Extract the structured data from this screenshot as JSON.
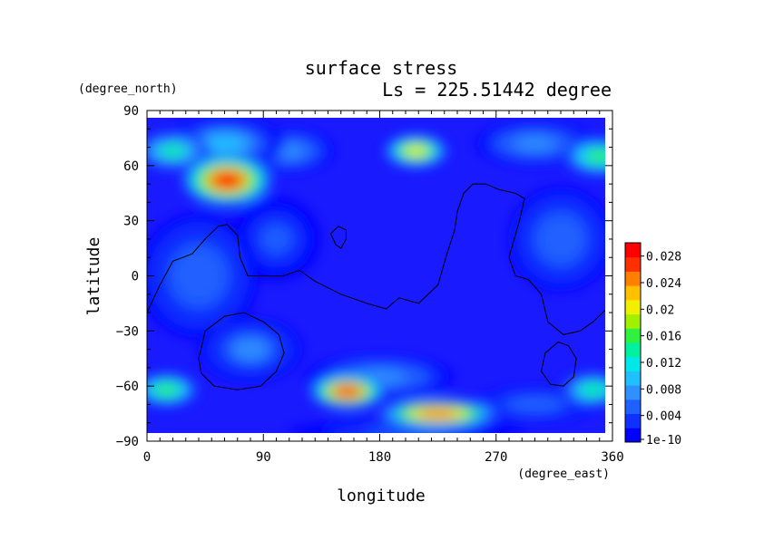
{
  "chart_data": {
    "type": "heatmap",
    "title": "surface stress",
    "subtitle": "Ls = 225.51442 degree",
    "xlabel": "longitude",
    "ylabel": "latitude",
    "x_units": "(degree_east)",
    "y_units": "(degree_north)",
    "xlim": [
      0,
      360
    ],
    "ylim": [
      -90,
      90
    ],
    "x_ticks": [
      "0",
      "90",
      "180",
      "270",
      "360"
    ],
    "x_tick_values": [
      0,
      90,
      180,
      270,
      360
    ],
    "y_ticks": [
      "90",
      "60",
      "30",
      "0",
      "−30",
      "−60",
      "−90"
    ],
    "y_tick_values": [
      90,
      60,
      30,
      0,
      -30,
      -60,
      -90
    ],
    "colorbar": {
      "range": [
        0,
        0.03
      ],
      "ticks": [
        "1e-10",
        "0.004",
        "0.008",
        "0.012",
        "0.016",
        "0.02",
        "0.024",
        "0.028"
      ],
      "tick_values": [
        0,
        0.004,
        0.008,
        0.012,
        0.016,
        0.02,
        0.024,
        0.028
      ],
      "colors": [
        "#0000ff",
        "#1030ff",
        "#2060ff",
        "#3090ff",
        "#20c0ff",
        "#00e8e8",
        "#00f0a0",
        "#30f040",
        "#a0f000",
        "#f0f000",
        "#ffc000",
        "#ff8000",
        "#ff3000",
        "#ff0000"
      ]
    },
    "field_features": [
      {
        "lon": 62,
        "lat": 52,
        "value": 0.028,
        "rx": 30,
        "ry": 12
      },
      {
        "lon": 208,
        "lat": 68,
        "value": 0.021,
        "rx": 22,
        "ry": 8
      },
      {
        "lon": 155,
        "lat": -63,
        "value": 0.027,
        "rx": 25,
        "ry": 8
      },
      {
        "lon": 225,
        "lat": -75,
        "value": 0.025,
        "rx": 40,
        "ry": 7
      },
      {
        "lon": 15,
        "lat": -62,
        "value": 0.016,
        "rx": 22,
        "ry": 8
      },
      {
        "lon": 345,
        "lat": -62,
        "value": 0.014,
        "rx": 22,
        "ry": 8
      },
      {
        "lon": 350,
        "lat": 65,
        "value": 0.016,
        "rx": 25,
        "ry": 9
      },
      {
        "lon": 20,
        "lat": 68,
        "value": 0.013,
        "rx": 25,
        "ry": 9
      },
      {
        "lon": 60,
        "lat": 72,
        "value": 0.009,
        "rx": 40,
        "ry": 12
      },
      {
        "lon": 110,
        "lat": 68,
        "value": 0.008,
        "rx": 30,
        "ry": 10
      },
      {
        "lon": 300,
        "lat": 72,
        "value": 0.008,
        "rx": 40,
        "ry": 10
      },
      {
        "lon": 80,
        "lat": -40,
        "value": 0.007,
        "rx": 35,
        "ry": 15
      },
      {
        "lon": 180,
        "lat": -55,
        "value": 0.008,
        "rx": 50,
        "ry": 10
      },
      {
        "lon": 40,
        "lat": 0,
        "value": 0.006,
        "rx": 40,
        "ry": 30
      },
      {
        "lon": 320,
        "lat": 20,
        "value": 0.006,
        "rx": 35,
        "ry": 25
      },
      {
        "lon": 100,
        "lat": 20,
        "value": 0.005,
        "rx": 30,
        "ry": 20
      },
      {
        "lon": 200,
        "lat": -85,
        "value": 0.005,
        "rx": 80,
        "ry": 6
      },
      {
        "lon": 300,
        "lat": -70,
        "value": 0.006,
        "rx": 40,
        "ry": 8
      }
    ],
    "contours": [
      [
        [
          0,
          -20
        ],
        [
          10,
          -5
        ],
        [
          20,
          8
        ],
        [
          35,
          12
        ],
        [
          45,
          20
        ],
        [
          55,
          27
        ],
        [
          62,
          28
        ],
        [
          70,
          22
        ],
        [
          72,
          10
        ],
        [
          78,
          0
        ],
        [
          90,
          0
        ],
        [
          105,
          0
        ],
        [
          118,
          3
        ],
        [
          130,
          -3
        ],
        [
          150,
          -10
        ],
        [
          170,
          -15
        ],
        [
          185,
          -18
        ],
        [
          195,
          -12
        ],
        [
          210,
          -15
        ],
        [
          225,
          -5
        ],
        [
          232,
          12
        ],
        [
          238,
          25
        ],
        [
          240,
          35
        ],
        [
          245,
          45
        ],
        [
          252,
          50
        ],
        [
          262,
          50
        ],
        [
          272,
          47
        ],
        [
          285,
          45
        ],
        [
          292,
          42
        ],
        [
          288,
          30
        ],
        [
          280,
          10
        ],
        [
          285,
          0
        ],
        [
          295,
          -2
        ],
        [
          305,
          -10
        ],
        [
          310,
          -25
        ],
        [
          322,
          -32
        ],
        [
          335,
          -30
        ],
        [
          345,
          -25
        ],
        [
          360,
          -15
        ]
      ],
      [
        [
          40,
          -45
        ],
        [
          45,
          -30
        ],
        [
          60,
          -22
        ],
        [
          75,
          -20
        ],
        [
          90,
          -25
        ],
        [
          102,
          -32
        ],
        [
          106,
          -42
        ],
        [
          100,
          -52
        ],
        [
          88,
          -60
        ],
        [
          70,
          -62
        ],
        [
          52,
          -60
        ],
        [
          42,
          -53
        ],
        [
          40,
          -45
        ]
      ],
      [
        [
          142,
          23
        ],
        [
          148,
          27
        ],
        [
          154,
          25
        ],
        [
          154,
          20
        ],
        [
          150,
          15
        ],
        [
          146,
          17
        ],
        [
          142,
          23
        ]
      ],
      [
        [
          305,
          -52
        ],
        [
          308,
          -42
        ],
        [
          318,
          -36
        ],
        [
          326,
          -38
        ],
        [
          332,
          -45
        ],
        [
          330,
          -55
        ],
        [
          322,
          -60
        ],
        [
          312,
          -59
        ],
        [
          305,
          -52
        ]
      ]
    ]
  }
}
